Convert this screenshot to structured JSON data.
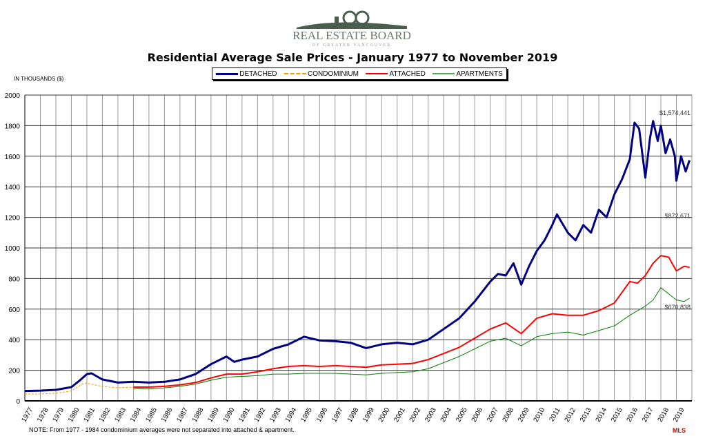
{
  "logo": {
    "text": "REAL ESTATE BOARD",
    "subtext": "OF GREATER VANCOUVER",
    "mark": "100"
  },
  "chart_data": {
    "type": "line",
    "title": "Residential Average Sale Prices  -  January 1977 to November 2019",
    "ylabel": "IN THOUSANDS ($)",
    "xlabel": "",
    "ylim": [
      0,
      2000
    ],
    "xlim": [
      1977,
      2020
    ],
    "yticks": [
      0,
      200,
      400,
      600,
      800,
      1000,
      1200,
      1400,
      1600,
      1800,
      2000
    ],
    "xticks": [
      "1977",
      "1978",
      "1979",
      "1980",
      "1981",
      "1982",
      "1983",
      "1984",
      "1985",
      "1986",
      "1987",
      "1988",
      "1989",
      "1990",
      "1991",
      "1992",
      "1993",
      "1994",
      "1995",
      "1996",
      "1997",
      "1998",
      "1999",
      "2000",
      "2001",
      "2002",
      "2003",
      "2004",
      "2005",
      "2006",
      "2007",
      "2008",
      "2009",
      "2010",
      "2011",
      "2012",
      "2013",
      "2014",
      "2015",
      "2016",
      "2017",
      "2018",
      "2019"
    ],
    "grid": true,
    "legend_position": "top",
    "series": [
      {
        "name": "DETACHED",
        "color": "#000080",
        "style": "solid",
        "width": 3,
        "x": [
          1977,
          1978,
          1979,
          1980,
          1980.5,
          1981,
          1981.3,
          1982,
          1983,
          1984,
          1985,
          1986,
          1987,
          1988,
          1989,
          1990,
          1990.5,
          1991,
          1992,
          1993,
          1994,
          1995,
          1996,
          1997,
          1998,
          1999,
          2000,
          2001,
          2002,
          2003,
          2004,
          2005,
          2006,
          2007,
          2007.5,
          2008,
          2008.5,
          2009,
          2009.5,
          2010,
          2010.5,
          2011,
          2011.3,
          2012,
          2012.5,
          2013,
          2013.5,
          2014,
          2014.5,
          2015,
          2015.5,
          2016,
          2016.3,
          2016.6,
          2017,
          2017.3,
          2017.5,
          2017.8,
          2018,
          2018.3,
          2018.6,
          2018.9,
          2019,
          2019.3,
          2019.6,
          2019.85
        ],
        "y": [
          65,
          67,
          72,
          90,
          130,
          175,
          180,
          140,
          120,
          125,
          120,
          125,
          140,
          175,
          240,
          290,
          255,
          270,
          290,
          340,
          370,
          420,
          395,
          390,
          380,
          345,
          370,
          380,
          370,
          400,
          470,
          540,
          650,
          780,
          830,
          820,
          900,
          760,
          880,
          980,
          1050,
          1150,
          1220,
          1100,
          1050,
          1150,
          1100,
          1250,
          1200,
          1350,
          1450,
          1580,
          1820,
          1780,
          1460,
          1720,
          1830,
          1700,
          1800,
          1620,
          1710,
          1600,
          1440,
          1600,
          1500,
          1574
        ]
      },
      {
        "name": "CONDOMINIUM",
        "color": "#ff9900",
        "style": "dashed",
        "width": 1,
        "x": [
          1977,
          1978,
          1979,
          1980,
          1980.7,
          1981,
          1982,
          1983,
          1984
        ],
        "y": [
          45,
          45,
          50,
          65,
          110,
          115,
          95,
          85,
          90
        ]
      },
      {
        "name": "ATTACHED",
        "color": "#ff0000",
        "style": "solid",
        "width": 2,
        "x": [
          1984,
          1985,
          1986,
          1987,
          1988,
          1989,
          1990,
          1991,
          1992,
          1993,
          1994,
          1995,
          1996,
          1997,
          1998,
          1999,
          2000,
          2001,
          2002,
          2003,
          2004,
          2005,
          2006,
          2007,
          2008,
          2009,
          2010,
          2011,
          2012,
          2013,
          2014,
          2015,
          2016,
          2016.5,
          2017,
          2017.5,
          2018,
          2018.5,
          2019,
          2019.5,
          2019.85
        ],
        "y": [
          90,
          90,
          95,
          105,
          120,
          150,
          175,
          175,
          190,
          210,
          225,
          230,
          225,
          230,
          225,
          220,
          235,
          240,
          245,
          270,
          310,
          350,
          410,
          470,
          510,
          440,
          540,
          570,
          560,
          560,
          590,
          640,
          780,
          770,
          820,
          900,
          950,
          940,
          850,
          880,
          873
        ]
      },
      {
        "name": "APARTMENTS",
        "color": "#008000",
        "style": "solid",
        "width": 1,
        "x": [
          1984,
          1985,
          1986,
          1987,
          1988,
          1989,
          1990,
          1991,
          1992,
          1993,
          1994,
          1995,
          1996,
          1997,
          1998,
          1999,
          2000,
          2001,
          2002,
          2003,
          2004,
          2005,
          2006,
          2007,
          2008,
          2009,
          2010,
          2011,
          2012,
          2013,
          2014,
          2015,
          2016,
          2017,
          2017.5,
          2018,
          2018.5,
          2019,
          2019.5,
          2019.85
        ],
        "y": [
          80,
          78,
          85,
          95,
          110,
          135,
          155,
          160,
          165,
          175,
          175,
          180,
          180,
          180,
          175,
          170,
          180,
          185,
          190,
          210,
          250,
          290,
          340,
          390,
          410,
          360,
          420,
          440,
          450,
          430,
          460,
          490,
          560,
          620,
          660,
          740,
          700,
          660,
          650,
          671
        ]
      }
    ],
    "annotations": [
      "$1,574,441",
      "$872,671",
      "$670,838"
    ],
    "note": "NOTE:  From 1977 - 1984 condominium averages were not separated into attached & apartment."
  },
  "badge": "MLS"
}
